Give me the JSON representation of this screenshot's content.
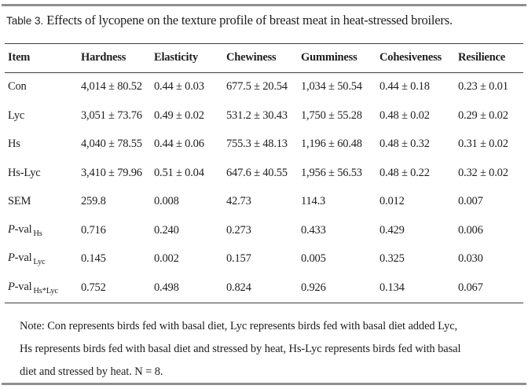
{
  "page": {
    "background": "#ffffff",
    "text_color": "#1e1e21",
    "rule_thick_color": "#8f8f8f",
    "rule_thin_color": "#3f3f3f"
  },
  "title": {
    "label": "Table 3.",
    "caption": " Effects of lycopene on the texture profile of breast meat in heat-stressed broilers."
  },
  "table": {
    "columns": [
      "Item",
      "Hardness",
      "Elasticity",
      "Chewiness",
      "Gumminess",
      "Cohesiveness",
      "Resilience"
    ],
    "rows": [
      {
        "prefix_italic": "",
        "label": "Con",
        "sub": "",
        "values": [
          "4,014 ± 80.52",
          "0.44 ± 0.03",
          "677.5 ± 20.54",
          "1,034 ± 50.54",
          "0.44 ± 0.18",
          "0.23 ± 0.01"
        ]
      },
      {
        "prefix_italic": "",
        "label": "Lyc",
        "sub": "",
        "values": [
          "3,051 ± 73.76",
          "0.49 ± 0.02",
          "531.2 ± 30.43",
          "1,750 ± 55.28",
          "0.48 ± 0.02",
          "0.29 ± 0.02"
        ]
      },
      {
        "prefix_italic": "",
        "label": "Hs",
        "sub": "",
        "values": [
          "4,040 ± 78.55",
          "0.44 ± 0.06",
          "755.3 ± 48.13",
          "1,196 ± 60.48",
          "0.48 ± 0.32",
          "0.31 ± 0.02"
        ]
      },
      {
        "prefix_italic": "",
        "label": "Hs-Lyc",
        "sub": "",
        "values": [
          "3,410 ± 79.96",
          "0.51 ± 0.04",
          "647.6 ± 40.55",
          "1,956 ± 56.53",
          "0.48 ± 0.22",
          "0.32 ± 0.02"
        ]
      },
      {
        "prefix_italic": "",
        "label": "SEM",
        "sub": "",
        "values": [
          "259.8",
          "0.008",
          "42.73",
          "114.3",
          "0.012",
          "0.007"
        ]
      },
      {
        "prefix_italic": "P",
        "label": "-val",
        "sub": "Hs",
        "values": [
          "0.716",
          "0.240",
          "0.273",
          "0.433",
          "0.429",
          "0.006"
        ]
      },
      {
        "prefix_italic": "P",
        "label": "-val",
        "sub": "Lyc",
        "values": [
          "0.145",
          "0.002",
          "0.157",
          "0.005",
          "0.325",
          "0.030"
        ]
      },
      {
        "prefix_italic": "P",
        "label": "-val",
        "sub": "Hs*Lyc",
        "values": [
          "0.752",
          "0.498",
          "0.824",
          "0.926",
          "0.134",
          "0.067"
        ]
      }
    ]
  },
  "note": {
    "lines": [
      "Note: Con represents birds fed with basal diet, Lyc represents birds fed with basal diet added Lyc,",
      "Hs represents birds fed with basal diet and stressed by heat, Hs-Lyc represents birds fed with basal",
      "diet and stressed by heat. N = 8."
    ]
  }
}
